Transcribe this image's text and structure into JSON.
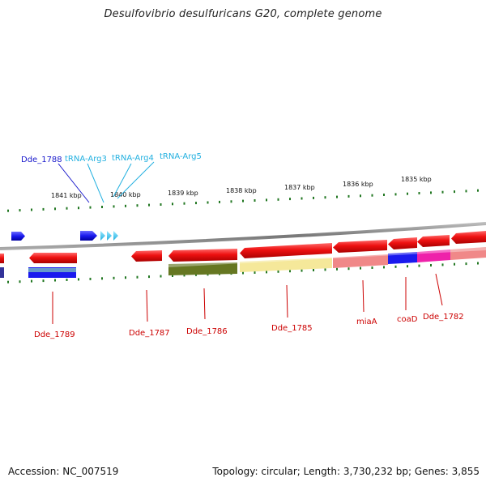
{
  "title": "Desulfovibrio desulfuricans G20, complete genome",
  "accession": "Accession: NC_007519",
  "summary": "Topology: circular; Length: 3,730,232 bp; Genes: 3,855",
  "scale_labels": [
    "1841 kbp",
    "1840 kbp",
    "1839 kbp",
    "1838 kbp",
    "1837 kbp",
    "1836 kbp",
    "1835 kbp"
  ],
  "top_labels": {
    "dde_1788": "Dde_1788",
    "trna_arg3": "tRNA-Arg3",
    "trna_arg4": "tRNA-Arg4",
    "trna_arg5": "tRNA-Arg5"
  },
  "bottom_labels": {
    "dde_1789": "Dde_1789",
    "dde_1787": "Dde_1787",
    "dde_1786": "Dde_1786",
    "dde_1785": "Dde_1785",
    "miaA": "miaA",
    "coaD": "coaD",
    "dde_1782": "Dde_1782"
  },
  "colors": {
    "gene_forward": "#1a1aee",
    "trna": "#33ccf0",
    "gene_reverse": "#ee1111",
    "backbone": "#888888",
    "tick": "#227722",
    "label_red": "#cc0000",
    "label_dblue": "#1a1acc",
    "label_lblue": "#22b0e0"
  }
}
